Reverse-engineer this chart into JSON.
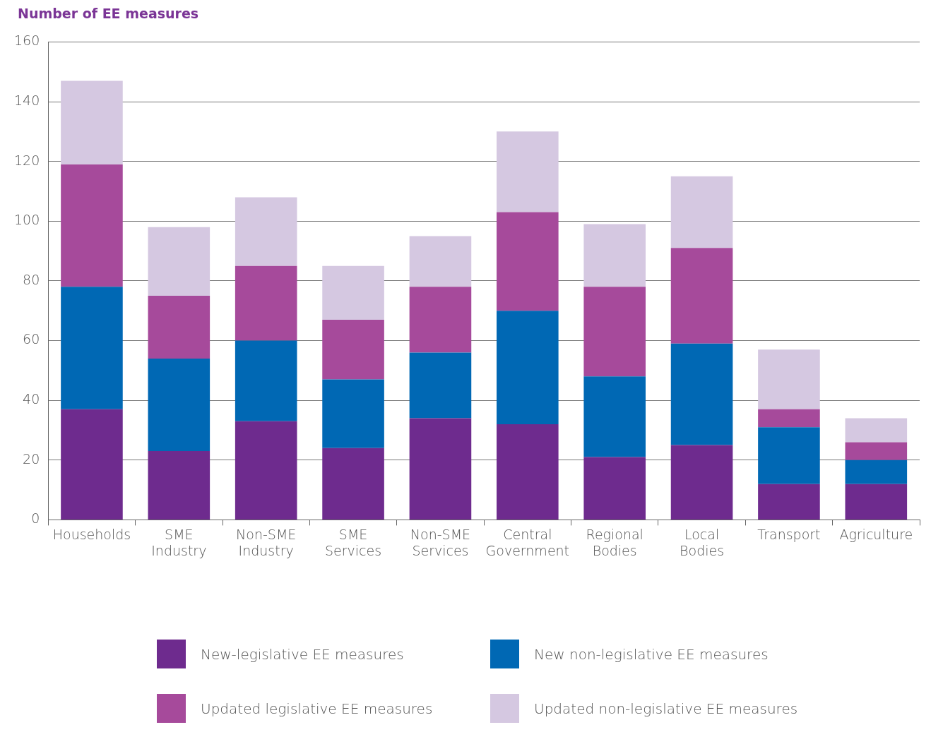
{
  "chart_data": {
    "type": "bar",
    "stacked": true,
    "ylabel": "Number of EE measures",
    "categories": [
      "Households",
      "SME Industry",
      "Non-SME Industry",
      "SME Services",
      "Non-SME Services",
      "Central Government",
      "Regional Bodies",
      "Local Bodies",
      "Transport",
      "Agriculture"
    ],
    "series": [
      {
        "name": "New-legislative EE measures",
        "color": "#6e2b8e",
        "values": [
          37,
          23,
          33,
          24,
          34,
          32,
          21,
          25,
          12,
          12
        ]
      },
      {
        "name": "New non-legislative EE measures",
        "color": "#0068b4",
        "values": [
          41,
          31,
          27,
          23,
          22,
          38,
          27,
          34,
          19,
          8
        ]
      },
      {
        "name": "Updated legislative EE measures",
        "color": "#a64a9b",
        "values": [
          41,
          21,
          25,
          20,
          22,
          33,
          30,
          32,
          6,
          6
        ]
      },
      {
        "name": "Updated non-legislative EE measures",
        "color": "#d5c8e1",
        "values": [
          28,
          23,
          23,
          18,
          17,
          27,
          21,
          24,
          20,
          8
        ]
      }
    ],
    "ylim": [
      0,
      160
    ],
    "yticks": [
      0,
      20,
      40,
      60,
      80,
      100,
      120,
      140,
      160
    ],
    "grid": "y",
    "legend": "bottom"
  }
}
